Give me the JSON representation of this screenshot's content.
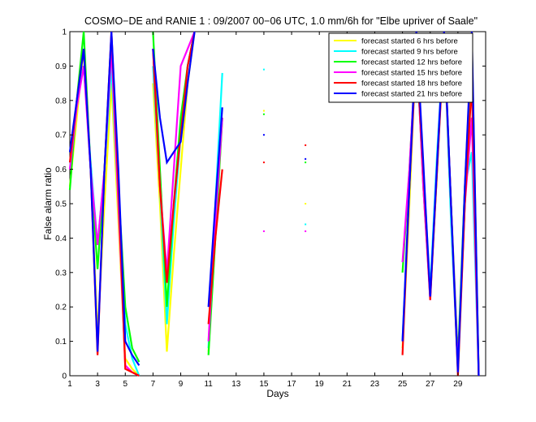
{
  "chart_data": {
    "type": "line",
    "title": "COSMO−DE and RANIE 1 : 09/2007 00−06 UTC, 1.0 mm/6h for \"Elbe upriver of Saale\"",
    "xlabel": "Days",
    "ylabel": "False alarm ratio",
    "xlim": [
      1,
      31
    ],
    "ylim": [
      0,
      1
    ],
    "xticks": [
      1,
      3,
      5,
      7,
      9,
      11,
      13,
      15,
      17,
      19,
      21,
      23,
      25,
      27,
      29
    ],
    "yticks": [
      0,
      0.1,
      0.2,
      0.3,
      0.4,
      0.5,
      0.6,
      0.7,
      0.8,
      0.9,
      1
    ],
    "ytick_labels": [
      "0",
      "0.1",
      "0.2",
      "0.3",
      "0.4",
      "0.5",
      "0.6",
      "0.7",
      "0.8",
      "0.9",
      "1"
    ],
    "grid": false,
    "legend_position": "top-right",
    "series": [
      {
        "name": "forecast started 6 hrs before",
        "color": "#ffff00",
        "x": [
          1,
          1.5,
          2,
          2.5,
          3,
          3.5,
          4,
          4.5,
          5,
          5.5,
          6,
          null,
          7,
          7.5,
          8,
          8.5,
          9,
          9.5,
          10,
          null,
          11,
          11.5,
          12,
          null,
          15,
          null,
          18,
          null,
          25,
          25.5,
          26,
          26.5,
          27,
          27.5,
          28,
          28.5,
          29,
          29.5,
          30,
          30.5
        ],
        "y": [
          0.55,
          0.75,
          0.95,
          0.6,
          0.12,
          0.5,
          0.85,
          0.45,
          0.05,
          0.02,
          0.0,
          null,
          0.85,
          0.5,
          0.07,
          0.35,
          0.6,
          0.85,
          1.0,
          null,
          0.07,
          0.4,
          0.75,
          null,
          0.77,
          null,
          0.5,
          null,
          0.08,
          0.5,
          0.98,
          0.55,
          0.23,
          0.62,
          0.98,
          0.5,
          0.01,
          0.5,
          0.99,
          0.0
        ]
      },
      {
        "name": "forecast started 9 hrs before",
        "color": "#00ffff",
        "x": [
          1,
          1.5,
          2,
          2.5,
          3,
          3.5,
          4,
          4.5,
          5,
          5.5,
          6,
          null,
          7,
          7.5,
          8,
          8.5,
          9,
          9.5,
          10,
          null,
          11,
          11.5,
          12,
          null,
          15,
          null,
          18,
          null,
          25,
          25.5,
          26,
          26.5,
          27,
          27.5,
          28,
          28.5,
          29,
          29.5,
          30,
          30.5
        ],
        "y": [
          0.6,
          0.8,
          0.9,
          0.62,
          0.38,
          0.6,
          0.9,
          0.5,
          0.15,
          0.05,
          0.0,
          null,
          0.9,
          0.55,
          0.15,
          0.45,
          0.7,
          0.9,
          1.0,
          null,
          0.08,
          0.5,
          0.88,
          null,
          0.89,
          null,
          0.44,
          null,
          0.1,
          0.55,
          0.99,
          0.6,
          0.25,
          0.65,
          0.99,
          0.45,
          0.02,
          0.55,
          0.65,
          0.0
        ]
      },
      {
        "name": "forecast started 12 hrs before",
        "color": "#00ff00",
        "x": [
          1,
          1.5,
          2,
          2.5,
          3,
          3.5,
          4,
          4.5,
          5,
          5.5,
          6,
          null,
          7,
          7.5,
          8,
          8.5,
          9,
          9.5,
          10,
          null,
          11,
          11.5,
          12,
          null,
          15,
          null,
          18,
          null,
          25,
          25.5,
          26,
          26.5,
          27,
          27.5,
          28,
          28.5,
          29,
          29.5,
          30,
          30.5
        ],
        "y": [
          0.54,
          0.8,
          1.0,
          0.6,
          0.31,
          0.6,
          0.98,
          0.55,
          0.2,
          0.08,
          0.04,
          null,
          1.0,
          0.6,
          0.2,
          0.5,
          0.75,
          0.9,
          1.0,
          null,
          0.06,
          0.4,
          0.75,
          null,
          0.76,
          null,
          0.62,
          null,
          0.3,
          0.6,
          0.97,
          0.55,
          0.23,
          0.6,
          1.0,
          0.5,
          0.05,
          0.55,
          0.97,
          0.0
        ]
      },
      {
        "name": "forecast started 15 hrs before",
        "color": "#ff00ff",
        "x": [
          1,
          1.5,
          2,
          2.5,
          3,
          3.5,
          4,
          4.5,
          5,
          5.5,
          6,
          null,
          7,
          7.5,
          8,
          8.5,
          9,
          9.5,
          10,
          null,
          11,
          11.5,
          12,
          null,
          15,
          null,
          18,
          null,
          25,
          25.5,
          26,
          26.5,
          27,
          27.5,
          28,
          28.5,
          29,
          29.5,
          30,
          30.5
        ],
        "y": [
          0.6,
          0.78,
          0.9,
          0.6,
          0.38,
          0.6,
          0.95,
          0.5,
          0.03,
          0.01,
          0.0,
          null,
          0.95,
          0.55,
          0.3,
          0.6,
          0.9,
          0.95,
          1.0,
          null,
          0.1,
          0.45,
          0.75,
          null,
          0.42,
          null,
          0.42,
          null,
          0.33,
          0.6,
          0.97,
          0.55,
          0.22,
          0.62,
          1.0,
          0.5,
          0.03,
          0.5,
          0.75,
          0.0
        ]
      },
      {
        "name": "forecast started 18 hrs before",
        "color": "#ff0000",
        "x": [
          1,
          1.5,
          2,
          2.5,
          3,
          3.5,
          4,
          4.5,
          5,
          5.5,
          6,
          null,
          7,
          7.5,
          8,
          8.5,
          9,
          9.5,
          10,
          null,
          11,
          11.5,
          12,
          null,
          15,
          null,
          18,
          null,
          25,
          25.5,
          26,
          26.5,
          27,
          27.5,
          28,
          28.5,
          29,
          29.5,
          30,
          30.5
        ],
        "y": [
          0.62,
          0.8,
          0.95,
          0.6,
          0.06,
          0.6,
          1.0,
          0.55,
          0.02,
          0.01,
          0.0,
          null,
          0.95,
          0.55,
          0.27,
          0.5,
          0.7,
          0.9,
          1.0,
          null,
          0.15,
          0.4,
          0.6,
          null,
          0.62,
          null,
          0.67,
          null,
          0.06,
          0.55,
          0.95,
          0.6,
          0.22,
          0.6,
          0.98,
          0.5,
          0.0,
          0.5,
          0.85,
          0.0
        ]
      },
      {
        "name": "forecast started 21 hrs before",
        "color": "#0000ff",
        "x": [
          1,
          1.5,
          2,
          2.5,
          3,
          3.5,
          4,
          4.5,
          5,
          5.5,
          6,
          null,
          7,
          7.5,
          8,
          8.5,
          9,
          9.5,
          10,
          null,
          11,
          11.5,
          12,
          null,
          15,
          null,
          18,
          null,
          25,
          25.5,
          26,
          26.5,
          27,
          27.5,
          28,
          28.5,
          29,
          29.5,
          30,
          30.5
        ],
        "y": [
          0.65,
          0.8,
          0.95,
          0.6,
          0.07,
          0.6,
          1.0,
          0.6,
          0.1,
          0.06,
          0.03,
          null,
          0.95,
          0.75,
          0.62,
          0.65,
          0.68,
          0.85,
          1.0,
          null,
          0.2,
          0.5,
          0.78,
          null,
          0.7,
          null,
          0.63,
          null,
          0.1,
          0.55,
          1.0,
          0.62,
          0.23,
          0.62,
          1.0,
          0.5,
          0.01,
          0.55,
          1.0,
          0.0
        ]
      }
    ]
  }
}
